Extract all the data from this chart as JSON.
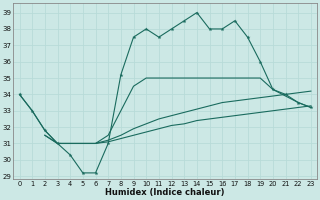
{
  "xlabel": "Humidex (Indice chaleur)",
  "xlim": [
    -0.5,
    23.5
  ],
  "ylim": [
    28.8,
    39.6
  ],
  "yticks": [
    29,
    30,
    31,
    32,
    33,
    34,
    35,
    36,
    37,
    38,
    39
  ],
  "xticks": [
    0,
    1,
    2,
    3,
    4,
    5,
    6,
    7,
    8,
    9,
    10,
    11,
    12,
    13,
    14,
    15,
    16,
    17,
    18,
    19,
    20,
    21,
    22,
    23
  ],
  "bg_color": "#cce8e5",
  "line_color": "#1a6b5e",
  "grid_color": "#b8dbd8",
  "main_x": [
    0,
    1,
    2,
    3,
    4,
    5,
    6,
    7,
    8,
    9,
    10,
    11,
    12,
    13,
    14,
    15,
    16,
    17,
    18,
    19,
    20,
    21,
    22,
    23
  ],
  "main_y": [
    34,
    33,
    31.8,
    31.0,
    30.3,
    29.2,
    29.2,
    31.0,
    35.2,
    37.5,
    38.0,
    37.5,
    38.0,
    38.5,
    39.0,
    38.0,
    38.0,
    38.5,
    37.5,
    36.0,
    34.3,
    34.0,
    33.5,
    33.2
  ],
  "main_markers": [
    0,
    1,
    2,
    3,
    4,
    5,
    6,
    7,
    8,
    9,
    10,
    11,
    12,
    13,
    14,
    15,
    16,
    17,
    18,
    19,
    20,
    21,
    22,
    23
  ],
  "upper_x": [
    0,
    1,
    2,
    3,
    4,
    5,
    6,
    7,
    8,
    9,
    10,
    11,
    12,
    13,
    14,
    15,
    16,
    17,
    18,
    19
  ],
  "upper_y": [
    34.0,
    33.0,
    31.8,
    31.0,
    31.0,
    31.0,
    31.0,
    31.5,
    33.0,
    34.5,
    35.0,
    35.0,
    35.0,
    35.0,
    35.0,
    35.0,
    35.0,
    35.0,
    35.0,
    35.0
  ],
  "mid_x": [
    2,
    3,
    4,
    5,
    6,
    7,
    8,
    9,
    10,
    11,
    12,
    13,
    14,
    15,
    16,
    17,
    18,
    19,
    20,
    21,
    22,
    23
  ],
  "mid_y": [
    31.5,
    31.0,
    31.0,
    31.0,
    31.0,
    31.2,
    31.5,
    31.9,
    32.2,
    32.5,
    32.7,
    32.9,
    33.1,
    33.3,
    33.5,
    33.6,
    33.7,
    33.8,
    33.9,
    34.0,
    34.1,
    34.2
  ],
  "low_x": [
    2,
    3,
    4,
    5,
    6,
    7,
    8,
    9,
    10,
    11,
    12,
    13,
    14,
    15,
    16,
    17,
    18,
    19,
    20,
    21,
    22,
    23
  ],
  "low_y": [
    31.5,
    31.0,
    31.0,
    31.0,
    31.0,
    31.1,
    31.3,
    31.5,
    31.7,
    31.9,
    32.1,
    32.2,
    32.4,
    32.5,
    32.6,
    32.7,
    32.8,
    32.9,
    33.0,
    33.1,
    33.2,
    33.3
  ],
  "right_x": [
    19,
    20,
    21,
    22,
    23
  ],
  "right_y": [
    35.0,
    34.3,
    33.9,
    33.5,
    33.2
  ]
}
